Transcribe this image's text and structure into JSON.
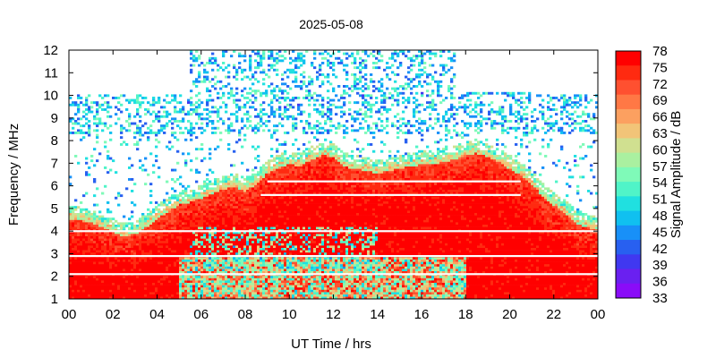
{
  "chart_data": {
    "type": "heatmap",
    "title": "2025-05-08",
    "xlabel": "UT Time / hrs",
    "ylabel": "Frequency / MHz",
    "xlim": [
      0,
      24
    ],
    "ylim": [
      1,
      12
    ],
    "x_ticks": [
      "00",
      "02",
      "04",
      "06",
      "08",
      "10",
      "12",
      "14",
      "16",
      "18",
      "20",
      "22",
      "00"
    ],
    "y_ticks": [
      "1",
      "2",
      "3",
      "4",
      "5",
      "6",
      "7",
      "8",
      "9",
      "10",
      "11",
      "12"
    ],
    "grid": false,
    "colorbar": {
      "label": "Signal Amplitude / dB",
      "min": 33,
      "max": 78,
      "ticks": [
        "78",
        "75",
        "72",
        "69",
        "66",
        "63",
        "60",
        "57",
        "54",
        "51",
        "48",
        "45",
        "42",
        "39",
        "36",
        "33"
      ],
      "colors": [
        "#ff0000",
        "#ff2a10",
        "#ff5030",
        "#ff7845",
        "#fca060",
        "#f2c478",
        "#d0e090",
        "#aaf0a0",
        "#7ffab8",
        "#50f4c8",
        "#20e0e0",
        "#10c0f0",
        "#1890f8",
        "#2860f0",
        "#4038f0",
        "#6a20f0",
        "#8a0cf8"
      ]
    },
    "strong_region_upper_edge": {
      "description_hours": [
        0,
        0.5,
        1,
        1.5,
        2,
        2.5,
        3,
        3.5,
        4,
        4.5,
        5,
        5.5,
        6,
        6.5,
        7,
        7.5,
        8,
        8.5,
        9,
        9.5,
        10,
        10.5,
        11,
        11.5,
        12,
        12.5,
        13,
        13.5,
        14,
        14.5,
        15,
        15.5,
        16,
        16.5,
        17,
        17.5,
        18,
        18.5,
        19,
        19.5,
        20,
        20.5,
        21,
        21.5,
        22,
        22.5,
        23,
        23.5,
        24
      ],
      "mhz": [
        4.8,
        4.7,
        4.6,
        4.4,
        4.2,
        4.0,
        4.1,
        4.4,
        4.8,
        5.1,
        5.4,
        5.5,
        5.7,
        5.9,
        6.1,
        6.2,
        6.0,
        6.3,
        6.8,
        7.0,
        7.2,
        7.1,
        7.4,
        7.6,
        7.5,
        7.1,
        7.0,
        6.9,
        6.8,
        6.9,
        7.0,
        7.1,
        7.2,
        7.2,
        7.3,
        7.4,
        7.6,
        7.7,
        7.5,
        7.3,
        7.0,
        6.7,
        6.3,
        5.8,
        5.4,
        5.0,
        4.6,
        4.4,
        4.3
      ]
    }
  }
}
